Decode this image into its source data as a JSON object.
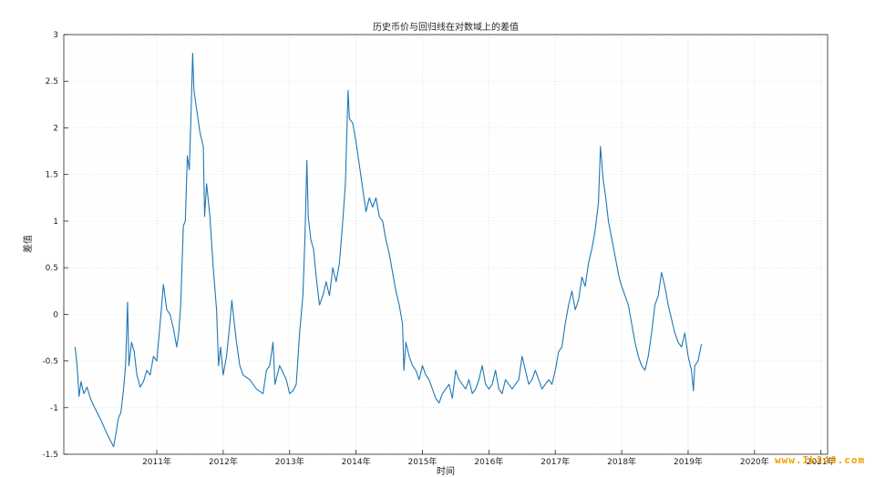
{
  "chart_data": {
    "type": "line",
    "title": "历史币价与回归线在对数域上的差值",
    "xlabel": "时间",
    "ylabel": "差值",
    "ylim": [
      -1.5,
      3
    ],
    "xlim": [
      2009.6,
      2021.1
    ],
    "grid": true,
    "y_ticks": [
      -1.5,
      -1,
      -0.5,
      0,
      0.5,
      1,
      1.5,
      2,
      2.5,
      3
    ],
    "y_tick_labels": [
      "-1.5",
      "-1",
      "-0.5",
      "0",
      "0.5",
      "1",
      "1.5",
      "2",
      "2.5",
      "3"
    ],
    "x_ticks": [
      2011,
      2012,
      2013,
      2014,
      2015,
      2016,
      2017,
      2018,
      2019,
      2020,
      2021
    ],
    "x_tick_labels": [
      "2011年",
      "2012年",
      "2013年",
      "2014年",
      "2015年",
      "2016年",
      "2017年",
      "2018年",
      "2019年",
      "2020年",
      "2021年"
    ],
    "series": [
      {
        "color": "#1f77b4",
        "points": [
          [
            2009.77,
            -0.35
          ],
          [
            2009.8,
            -0.55
          ],
          [
            2009.83,
            -0.88
          ],
          [
            2009.86,
            -0.72
          ],
          [
            2009.9,
            -0.85
          ],
          [
            2009.95,
            -0.78
          ],
          [
            2010.0,
            -0.9
          ],
          [
            2010.05,
            -0.98
          ],
          [
            2010.1,
            -1.05
          ],
          [
            2010.15,
            -1.12
          ],
          [
            2010.2,
            -1.2
          ],
          [
            2010.25,
            -1.28
          ],
          [
            2010.3,
            -1.35
          ],
          [
            2010.35,
            -1.42
          ],
          [
            2010.38,
            -1.3
          ],
          [
            2010.42,
            -1.12
          ],
          [
            2010.46,
            -1.05
          ],
          [
            2010.5,
            -0.8
          ],
          [
            2010.53,
            -0.55
          ],
          [
            2010.56,
            0.13
          ],
          [
            2010.58,
            -0.55
          ],
          [
            2010.62,
            -0.3
          ],
          [
            2010.66,
            -0.4
          ],
          [
            2010.7,
            -0.65
          ],
          [
            2010.75,
            -0.78
          ],
          [
            2010.8,
            -0.72
          ],
          [
            2010.85,
            -0.6
          ],
          [
            2010.9,
            -0.65
          ],
          [
            2010.95,
            -0.45
          ],
          [
            2011.0,
            -0.5
          ],
          [
            2011.05,
            -0.1
          ],
          [
            2011.1,
            0.32
          ],
          [
            2011.15,
            0.05
          ],
          [
            2011.2,
            0.0
          ],
          [
            2011.25,
            -0.15
          ],
          [
            2011.3,
            -0.35
          ],
          [
            2011.33,
            -0.2
          ],
          [
            2011.36,
            0.1
          ],
          [
            2011.4,
            0.95
          ],
          [
            2011.43,
            1.0
          ],
          [
            2011.46,
            1.7
          ],
          [
            2011.49,
            1.55
          ],
          [
            2011.52,
            2.25
          ],
          [
            2011.54,
            2.8
          ],
          [
            2011.56,
            2.4
          ],
          [
            2011.6,
            2.2
          ],
          [
            2011.65,
            1.95
          ],
          [
            2011.7,
            1.8
          ],
          [
            2011.72,
            1.05
          ],
          [
            2011.75,
            1.4
          ],
          [
            2011.8,
            1.05
          ],
          [
            2011.85,
            0.5
          ],
          [
            2011.9,
            0.05
          ],
          [
            2011.93,
            -0.55
          ],
          [
            2011.96,
            -0.35
          ],
          [
            2012.0,
            -0.65
          ],
          [
            2012.05,
            -0.45
          ],
          [
            2012.1,
            -0.1
          ],
          [
            2012.13,
            0.15
          ],
          [
            2012.16,
            -0.05
          ],
          [
            2012.2,
            -0.3
          ],
          [
            2012.25,
            -0.55
          ],
          [
            2012.3,
            -0.65
          ],
          [
            2012.4,
            -0.7
          ],
          [
            2012.5,
            -0.8
          ],
          [
            2012.6,
            -0.85
          ],
          [
            2012.65,
            -0.6
          ],
          [
            2012.7,
            -0.55
          ],
          [
            2012.75,
            -0.3
          ],
          [
            2012.78,
            -0.75
          ],
          [
            2012.85,
            -0.55
          ],
          [
            2012.95,
            -0.7
          ],
          [
            2013.0,
            -0.85
          ],
          [
            2013.05,
            -0.82
          ],
          [
            2013.1,
            -0.75
          ],
          [
            2013.15,
            -0.2
          ],
          [
            2013.2,
            0.2
          ],
          [
            2013.23,
            0.8
          ],
          [
            2013.26,
            1.65
          ],
          [
            2013.28,
            1.05
          ],
          [
            2013.32,
            0.8
          ],
          [
            2013.36,
            0.7
          ],
          [
            2013.4,
            0.4
          ],
          [
            2013.45,
            0.1
          ],
          [
            2013.5,
            0.2
          ],
          [
            2013.55,
            0.35
          ],
          [
            2013.6,
            0.2
          ],
          [
            2013.65,
            0.5
          ],
          [
            2013.7,
            0.35
          ],
          [
            2013.75,
            0.55
          ],
          [
            2013.8,
            1.0
          ],
          [
            2013.84,
            1.4
          ],
          [
            2013.88,
            2.4
          ],
          [
            2013.9,
            2.1
          ],
          [
            2013.95,
            2.05
          ],
          [
            2014.0,
            1.85
          ],
          [
            2014.05,
            1.6
          ],
          [
            2014.1,
            1.35
          ],
          [
            2014.15,
            1.1
          ],
          [
            2014.2,
            1.25
          ],
          [
            2014.25,
            1.15
          ],
          [
            2014.3,
            1.25
          ],
          [
            2014.35,
            1.05
          ],
          [
            2014.4,
            1.0
          ],
          [
            2014.45,
            0.8
          ],
          [
            2014.5,
            0.65
          ],
          [
            2014.55,
            0.45
          ],
          [
            2014.6,
            0.25
          ],
          [
            2014.65,
            0.1
          ],
          [
            2014.7,
            -0.1
          ],
          [
            2014.72,
            -0.6
          ],
          [
            2014.75,
            -0.3
          ],
          [
            2014.8,
            -0.45
          ],
          [
            2014.85,
            -0.55
          ],
          [
            2014.9,
            -0.6
          ],
          [
            2014.95,
            -0.7
          ],
          [
            2015.0,
            -0.55
          ],
          [
            2015.05,
            -0.65
          ],
          [
            2015.1,
            -0.7
          ],
          [
            2015.15,
            -0.8
          ],
          [
            2015.2,
            -0.9
          ],
          [
            2015.25,
            -0.95
          ],
          [
            2015.3,
            -0.85
          ],
          [
            2015.35,
            -0.8
          ],
          [
            2015.4,
            -0.75
          ],
          [
            2015.45,
            -0.9
          ],
          [
            2015.5,
            -0.6
          ],
          [
            2015.55,
            -0.7
          ],
          [
            2015.6,
            -0.75
          ],
          [
            2015.65,
            -0.8
          ],
          [
            2015.7,
            -0.7
          ],
          [
            2015.75,
            -0.85
          ],
          [
            2015.8,
            -0.8
          ],
          [
            2015.85,
            -0.7
          ],
          [
            2015.9,
            -0.55
          ],
          [
            2015.95,
            -0.75
          ],
          [
            2016.0,
            -0.8
          ],
          [
            2016.05,
            -0.75
          ],
          [
            2016.1,
            -0.6
          ],
          [
            2016.15,
            -0.8
          ],
          [
            2016.2,
            -0.85
          ],
          [
            2016.25,
            -0.7
          ],
          [
            2016.3,
            -0.75
          ],
          [
            2016.35,
            -0.8
          ],
          [
            2016.4,
            -0.75
          ],
          [
            2016.45,
            -0.7
          ],
          [
            2016.5,
            -0.45
          ],
          [
            2016.55,
            -0.6
          ],
          [
            2016.6,
            -0.75
          ],
          [
            2016.65,
            -0.7
          ],
          [
            2016.7,
            -0.6
          ],
          [
            2016.75,
            -0.7
          ],
          [
            2016.8,
            -0.8
          ],
          [
            2016.85,
            -0.75
          ],
          [
            2016.9,
            -0.7
          ],
          [
            2016.95,
            -0.75
          ],
          [
            2017.0,
            -0.6
          ],
          [
            2017.05,
            -0.4
          ],
          [
            2017.1,
            -0.35
          ],
          [
            2017.15,
            -0.1
          ],
          [
            2017.2,
            0.1
          ],
          [
            2017.25,
            0.25
          ],
          [
            2017.3,
            0.05
          ],
          [
            2017.35,
            0.15
          ],
          [
            2017.4,
            0.4
          ],
          [
            2017.45,
            0.3
          ],
          [
            2017.5,
            0.55
          ],
          [
            2017.55,
            0.7
          ],
          [
            2017.6,
            0.9
          ],
          [
            2017.65,
            1.2
          ],
          [
            2017.68,
            1.8
          ],
          [
            2017.72,
            1.45
          ],
          [
            2017.76,
            1.25
          ],
          [
            2017.8,
            1.0
          ],
          [
            2017.84,
            0.85
          ],
          [
            2017.88,
            0.7
          ],
          [
            2017.92,
            0.55
          ],
          [
            2017.96,
            0.4
          ],
          [
            2018.0,
            0.3
          ],
          [
            2018.05,
            0.2
          ],
          [
            2018.1,
            0.1
          ],
          [
            2018.15,
            -0.1
          ],
          [
            2018.2,
            -0.3
          ],
          [
            2018.25,
            -0.45
          ],
          [
            2018.3,
            -0.55
          ],
          [
            2018.35,
            -0.6
          ],
          [
            2018.4,
            -0.45
          ],
          [
            2018.45,
            -0.2
          ],
          [
            2018.5,
            0.1
          ],
          [
            2018.55,
            0.2
          ],
          [
            2018.6,
            0.45
          ],
          [
            2018.65,
            0.3
          ],
          [
            2018.7,
            0.1
          ],
          [
            2018.75,
            -0.05
          ],
          [
            2018.8,
            -0.2
          ],
          [
            2018.85,
            -0.3
          ],
          [
            2018.9,
            -0.35
          ],
          [
            2018.95,
            -0.2
          ],
          [
            2019.0,
            -0.45
          ],
          [
            2019.05,
            -0.6
          ],
          [
            2019.08,
            -0.82
          ],
          [
            2019.1,
            -0.55
          ],
          [
            2019.15,
            -0.5
          ],
          [
            2019.2,
            -0.32
          ]
        ]
      }
    ]
  },
  "watermark": "www.Ik240.com"
}
